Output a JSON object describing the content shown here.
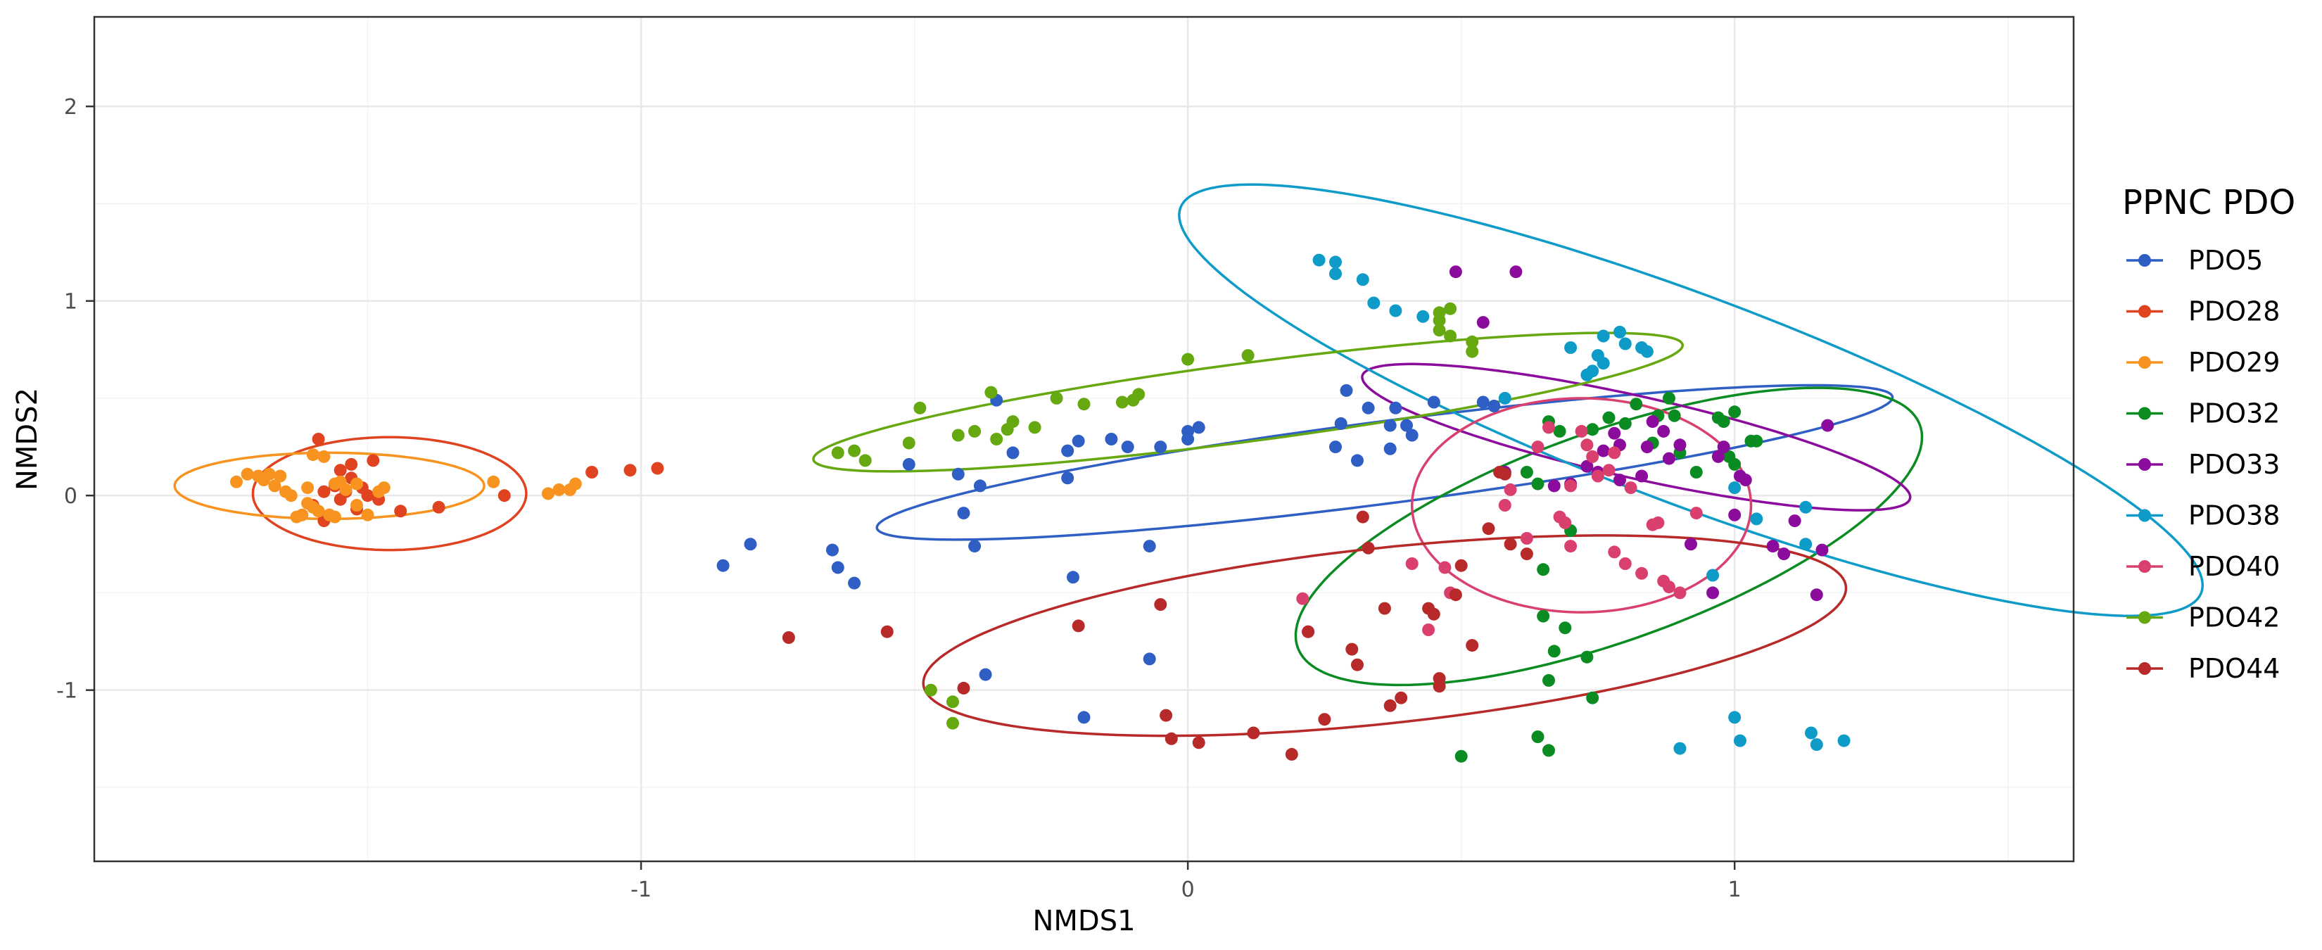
{
  "chart_data": {
    "type": "scatter",
    "title": "",
    "xlabel": "NMDS1",
    "ylabel": "NMDS2",
    "xlim": [
      -2.0,
      1.62
    ],
    "ylim": [
      -1.88,
      2.46
    ],
    "x_ticks": [
      -1,
      0,
      1
    ],
    "y_ticks": [
      -1,
      0,
      1,
      2
    ],
    "grid": true,
    "legend_title": "PPNC PDO",
    "legend_position": "right",
    "series": [
      {
        "name": "PDO5",
        "color": "#2f5fc4",
        "points": [
          [
            -0.85,
            -0.36
          ],
          [
            -0.8,
            -0.25
          ],
          [
            -0.65,
            -0.28
          ],
          [
            -0.64,
            -0.37
          ],
          [
            -0.61,
            -0.45
          ],
          [
            -0.51,
            0.16
          ],
          [
            -0.42,
            0.11
          ],
          [
            -0.41,
            -0.09
          ],
          [
            -0.39,
            -0.26
          ],
          [
            -0.38,
            0.05
          ],
          [
            -0.35,
            0.49
          ],
          [
            -0.32,
            0.22
          ],
          [
            -0.37,
            -0.92
          ],
          [
            -0.22,
            0.23
          ],
          [
            -0.22,
            0.09
          ],
          [
            -0.21,
            -0.42
          ],
          [
            -0.2,
            0.28
          ],
          [
            -0.19,
            -1.14
          ],
          [
            -0.14,
            0.29
          ],
          [
            -0.11,
            0.25
          ],
          [
            -0.07,
            -0.26
          ],
          [
            -0.05,
            0.25
          ],
          [
            -0.07,
            -0.84
          ],
          [
            0.0,
            0.33
          ],
          [
            0.0,
            0.29
          ],
          [
            0.02,
            0.35
          ],
          [
            0.27,
            0.25
          ],
          [
            0.28,
            0.37
          ],
          [
            0.29,
            0.54
          ],
          [
            0.31,
            0.18
          ],
          [
            0.33,
            0.45
          ],
          [
            0.37,
            0.24
          ],
          [
            0.37,
            0.36
          ],
          [
            0.38,
            0.45
          ],
          [
            0.4,
            0.36
          ],
          [
            0.41,
            0.31
          ],
          [
            0.45,
            0.48
          ],
          [
            0.54,
            0.48
          ],
          [
            0.56,
            0.46
          ]
        ]
      },
      {
        "name": "PDO28",
        "color": "#e0431f",
        "points": [
          [
            -1.25,
            0.0
          ],
          [
            -1.02,
            0.13
          ],
          [
            -1.09,
            0.12
          ],
          [
            -0.97,
            0.14
          ],
          [
            -1.37,
            -0.06
          ],
          [
            -1.44,
            -0.08
          ],
          [
            -1.48,
            -0.02
          ],
          [
            -1.5,
            0.0
          ],
          [
            -1.51,
            0.04
          ],
          [
            -1.52,
            -0.07
          ],
          [
            -1.53,
            0.16
          ],
          [
            -1.53,
            0.09
          ],
          [
            -1.54,
            0.02
          ],
          [
            -1.55,
            0.13
          ],
          [
            -1.55,
            -0.02
          ],
          [
            -1.56,
            0.05
          ],
          [
            -1.57,
            -0.1
          ],
          [
            -1.58,
            0.02
          ],
          [
            -1.58,
            -0.13
          ],
          [
            -1.59,
            0.29
          ],
          [
            -1.6,
            -0.05
          ],
          [
            -1.49,
            0.18
          ]
        ]
      },
      {
        "name": "PDO29",
        "color": "#f7931e",
        "points": [
          [
            -1.27,
            0.07
          ],
          [
            -1.12,
            0.06
          ],
          [
            -1.13,
            0.03
          ],
          [
            -1.15,
            0.03
          ],
          [
            -1.17,
            0.01
          ],
          [
            -1.47,
            0.04
          ],
          [
            -1.48,
            0.02
          ],
          [
            -1.5,
            -0.1
          ],
          [
            -1.52,
            0.06
          ],
          [
            -1.54,
            0.03
          ],
          [
            -1.56,
            0.06
          ],
          [
            -1.57,
            -0.1
          ],
          [
            -1.59,
            -0.08
          ],
          [
            -1.6,
            -0.06
          ],
          [
            -1.61,
            -0.04
          ],
          [
            -1.61,
            0.04
          ],
          [
            -1.62,
            -0.1
          ],
          [
            -1.63,
            -0.11
          ],
          [
            -1.64,
            0.0
          ],
          [
            -1.65,
            0.02
          ],
          [
            -1.66,
            0.1
          ],
          [
            -1.67,
            0.05
          ],
          [
            -1.68,
            0.11
          ],
          [
            -1.69,
            0.08
          ],
          [
            -1.7,
            0.1
          ],
          [
            -1.72,
            0.11
          ],
          [
            -1.74,
            0.07
          ],
          [
            -1.6,
            0.21
          ],
          [
            -1.58,
            0.2
          ],
          [
            -1.55,
            0.07
          ],
          [
            -1.52,
            -0.05
          ],
          [
            -1.56,
            -0.11
          ]
        ]
      },
      {
        "name": "PDO32",
        "color": "#0b8c22",
        "points": [
          [
            0.5,
            -1.34
          ],
          [
            0.64,
            -1.24
          ],
          [
            0.66,
            -1.31
          ],
          [
            0.66,
            -0.95
          ],
          [
            0.67,
            -0.8
          ],
          [
            0.69,
            -0.68
          ],
          [
            0.7,
            -0.18
          ],
          [
            0.65,
            -0.38
          ],
          [
            0.65,
            -0.62
          ],
          [
            0.73,
            -0.83
          ],
          [
            0.74,
            -1.04
          ],
          [
            0.64,
            0.06
          ],
          [
            0.62,
            0.12
          ],
          [
            0.66,
            0.38
          ],
          [
            0.68,
            0.33
          ],
          [
            0.74,
            0.34
          ],
          [
            0.77,
            0.4
          ],
          [
            0.8,
            0.37
          ],
          [
            0.82,
            0.47
          ],
          [
            0.85,
            0.27
          ],
          [
            0.86,
            0.41
          ],
          [
            0.88,
            0.5
          ],
          [
            0.89,
            0.41
          ],
          [
            0.9,
            0.22
          ],
          [
            0.93,
            0.12
          ],
          [
            0.97,
            0.4
          ],
          [
            0.98,
            0.38
          ],
          [
            0.99,
            0.2
          ],
          [
            1.0,
            0.43
          ],
          [
            1.03,
            0.28
          ],
          [
            1.04,
            0.28
          ],
          [
            1.0,
            0.16
          ]
        ]
      },
      {
        "name": "PDO33",
        "color": "#8b0c9c",
        "points": [
          [
            0.49,
            1.15
          ],
          [
            0.54,
            0.89
          ],
          [
            0.6,
            1.15
          ],
          [
            0.58,
            0.12
          ],
          [
            0.67,
            0.05
          ],
          [
            0.7,
            0.06
          ],
          [
            0.73,
            0.15
          ],
          [
            0.75,
            0.12
          ],
          [
            0.76,
            0.23
          ],
          [
            0.78,
            0.32
          ],
          [
            0.79,
            0.26
          ],
          [
            0.79,
            0.08
          ],
          [
            0.83,
            0.1
          ],
          [
            0.84,
            0.25
          ],
          [
            0.85,
            0.38
          ],
          [
            0.87,
            0.33
          ],
          [
            0.88,
            0.19
          ],
          [
            0.9,
            0.26
          ],
          [
            0.92,
            -0.25
          ],
          [
            0.97,
            0.2
          ],
          [
            0.98,
            0.25
          ],
          [
            1.0,
            -0.1
          ],
          [
            1.01,
            0.1
          ],
          [
            1.02,
            0.08
          ],
          [
            1.07,
            -0.26
          ],
          [
            1.09,
            -0.3
          ],
          [
            1.11,
            -0.13
          ],
          [
            1.15,
            -0.51
          ],
          [
            1.16,
            -0.28
          ],
          [
            1.17,
            0.36
          ],
          [
            0.96,
            -0.5
          ]
        ]
      },
      {
        "name": "PDO38",
        "color": "#0e9bc8",
        "points": [
          [
            0.24,
            1.21
          ],
          [
            0.27,
            1.2
          ],
          [
            0.27,
            1.14
          ],
          [
            0.32,
            1.11
          ],
          [
            0.34,
            0.99
          ],
          [
            0.38,
            0.95
          ],
          [
            0.43,
            0.92
          ],
          [
            0.58,
            0.5
          ],
          [
            0.7,
            0.76
          ],
          [
            0.73,
            0.62
          ],
          [
            0.74,
            0.64
          ],
          [
            0.75,
            0.72
          ],
          [
            0.76,
            0.82
          ],
          [
            0.76,
            0.68
          ],
          [
            0.79,
            0.84
          ],
          [
            0.8,
            0.78
          ],
          [
            0.83,
            0.76
          ],
          [
            0.84,
            0.74
          ],
          [
            0.9,
            -1.3
          ],
          [
            0.96,
            -0.41
          ],
          [
            1.0,
            0.04
          ],
          [
            1.0,
            -1.14
          ],
          [
            1.01,
            -1.26
          ],
          [
            1.04,
            -0.12
          ],
          [
            1.13,
            -0.06
          ],
          [
            1.13,
            -0.25
          ],
          [
            1.14,
            -1.22
          ],
          [
            1.15,
            -1.28
          ],
          [
            1.2,
            -1.26
          ]
        ]
      },
      {
        "name": "PDO40",
        "color": "#d9406e",
        "points": [
          [
            0.21,
            -0.53
          ],
          [
            0.22,
            -0.7
          ],
          [
            0.41,
            -0.35
          ],
          [
            0.44,
            -0.69
          ],
          [
            0.47,
            -0.37
          ],
          [
            0.48,
            -0.5
          ],
          [
            0.58,
            -0.05
          ],
          [
            0.59,
            0.03
          ],
          [
            0.62,
            -0.22
          ],
          [
            0.64,
            0.25
          ],
          [
            0.66,
            0.35
          ],
          [
            0.68,
            -0.11
          ],
          [
            0.69,
            -0.14
          ],
          [
            0.7,
            0.05
          ],
          [
            0.7,
            -0.26
          ],
          [
            0.72,
            0.33
          ],
          [
            0.73,
            0.26
          ],
          [
            0.74,
            0.2
          ],
          [
            0.75,
            0.1
          ],
          [
            0.77,
            0.13
          ],
          [
            0.78,
            0.22
          ],
          [
            0.78,
            -0.29
          ],
          [
            0.8,
            -0.35
          ],
          [
            0.81,
            0.04
          ],
          [
            0.83,
            -0.4
          ],
          [
            0.85,
            -0.15
          ],
          [
            0.86,
            -0.14
          ],
          [
            0.87,
            -0.44
          ],
          [
            0.88,
            -0.47
          ],
          [
            0.9,
            -0.5
          ],
          [
            0.93,
            -0.09
          ]
        ]
      },
      {
        "name": "PDO42",
        "color": "#66a80f",
        "points": [
          [
            -0.64,
            0.22
          ],
          [
            -0.61,
            0.23
          ],
          [
            -0.59,
            0.18
          ],
          [
            -0.51,
            0.27
          ],
          [
            -0.49,
            0.45
          ],
          [
            -0.47,
            -1.0
          ],
          [
            -0.43,
            -1.06
          ],
          [
            -0.43,
            -1.17
          ],
          [
            -0.42,
            0.31
          ],
          [
            -0.39,
            0.33
          ],
          [
            -0.36,
            0.53
          ],
          [
            -0.35,
            0.29
          ],
          [
            -0.33,
            0.34
          ],
          [
            -0.32,
            0.38
          ],
          [
            -0.28,
            0.35
          ],
          [
            -0.24,
            0.5
          ],
          [
            -0.19,
            0.47
          ],
          [
            -0.12,
            0.48
          ],
          [
            -0.1,
            0.49
          ],
          [
            -0.09,
            0.52
          ],
          [
            0.0,
            0.7
          ],
          [
            0.11,
            0.72
          ],
          [
            0.46,
            0.9
          ],
          [
            0.46,
            0.85
          ],
          [
            0.48,
            0.82
          ],
          [
            0.52,
            0.79
          ],
          [
            0.52,
            0.74
          ],
          [
            0.48,
            0.96
          ],
          [
            0.46,
            0.94
          ]
        ]
      },
      {
        "name": "PDO44",
        "color": "#b82a2a",
        "points": [
          [
            -0.73,
            -0.73
          ],
          [
            -0.55,
            -0.7
          ],
          [
            -0.2,
            -0.67
          ],
          [
            -0.05,
            -0.56
          ],
          [
            -0.04,
            -1.13
          ],
          [
            -0.03,
            -1.25
          ],
          [
            0.02,
            -1.27
          ],
          [
            0.12,
            -1.22
          ],
          [
            0.19,
            -1.33
          ],
          [
            0.22,
            -0.7
          ],
          [
            0.25,
            -1.15
          ],
          [
            0.3,
            -0.79
          ],
          [
            0.31,
            -0.87
          ],
          [
            0.32,
            -0.11
          ],
          [
            0.33,
            -0.27
          ],
          [
            0.36,
            -0.58
          ],
          [
            0.37,
            -1.08
          ],
          [
            0.39,
            -1.04
          ],
          [
            0.44,
            -0.58
          ],
          [
            0.45,
            -0.61
          ],
          [
            0.46,
            -0.94
          ],
          [
            0.46,
            -0.98
          ],
          [
            0.49,
            -0.51
          ],
          [
            0.5,
            -0.36
          ],
          [
            0.52,
            -0.77
          ],
          [
            0.55,
            -0.17
          ],
          [
            0.57,
            0.12
          ],
          [
            0.58,
            0.11
          ],
          [
            0.59,
            -0.25
          ],
          [
            0.62,
            -0.3
          ],
          [
            -0.41,
            -0.99
          ]
        ]
      }
    ],
    "ellipses": [
      {
        "name": "PDO5",
        "center": [
          0.36,
          0.17
        ],
        "rx": 0.99,
        "ry": 0.2,
        "angle": 20.7
      },
      {
        "name": "PDO28",
        "center": [
          -1.46,
          0.01
        ],
        "rx": 0.25,
        "ry": 0.29,
        "angle": 0
      },
      {
        "name": "PDO29",
        "center": [
          -1.57,
          0.05
        ],
        "rx": 0.283,
        "ry": 0.17,
        "angle": 0
      },
      {
        "name": "PDO32",
        "center": [
          0.77,
          -0.21
        ],
        "rx": 0.88,
        "ry": 0.37,
        "angle": 56.8
      },
      {
        "name": "PDO33",
        "center": [
          0.82,
          0.3
        ],
        "rx": 0.6,
        "ry": 0.18,
        "angle": -35.2
      },
      {
        "name": "PDO38",
        "center": [
          0.92,
          0.49
        ],
        "rx": 1.4,
        "ry": 0.38,
        "angle": -50.6
      },
      {
        "name": "PDO40",
        "center": [
          0.72,
          -0.05
        ],
        "rx": 0.31,
        "ry": 0.55,
        "angle": 0
      },
      {
        "name": "PDO42",
        "center": [
          0.11,
          0.48
        ],
        "rx": 0.85,
        "ry": 0.19,
        "angle": 21.3
      },
      {
        "name": "PDO44",
        "center": [
          0.36,
          -0.72
        ],
        "rx": 0.89,
        "ry": 0.43,
        "angle": 21.3
      }
    ]
  }
}
